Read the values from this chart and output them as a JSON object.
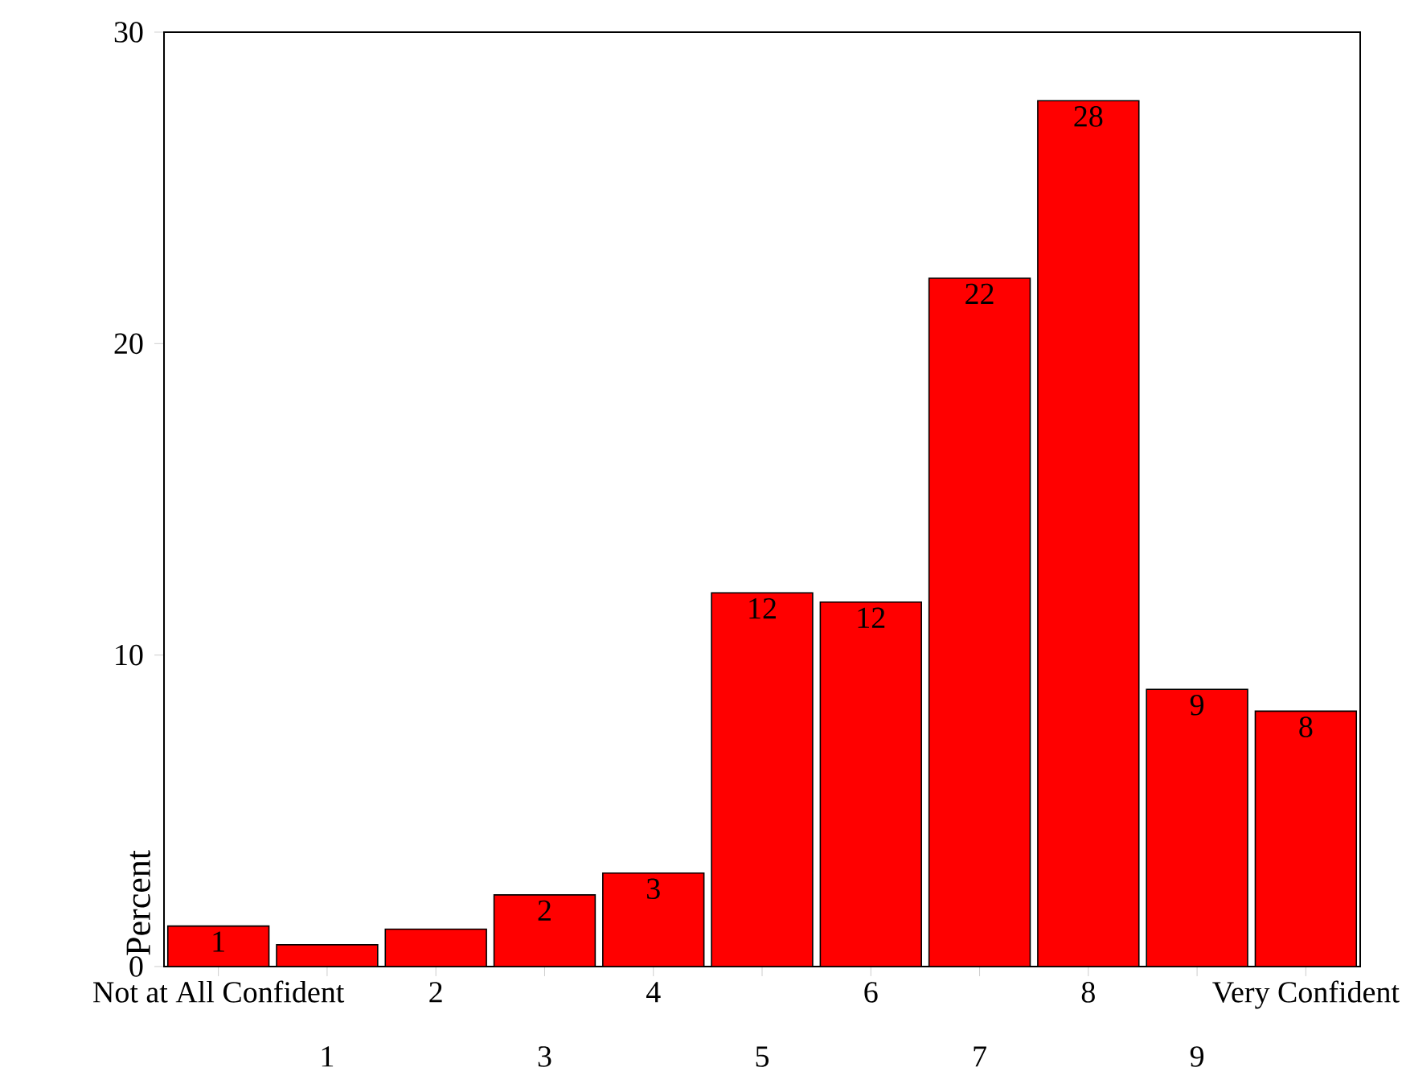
{
  "chart_data": {
    "type": "bar",
    "ylabel": "Percent",
    "categories": [
      "Not at All Confident",
      "1",
      "2",
      "3",
      "4",
      "5",
      "6",
      "7",
      "8",
      "9",
      "Very Confident"
    ],
    "values": [
      1.3,
      0.7,
      1.2,
      2.3,
      3.0,
      12.0,
      11.7,
      22.1,
      27.8,
      8.9,
      8.2
    ],
    "value_labels": [
      "1",
      null,
      null,
      "2",
      "3",
      "12",
      "12",
      "22",
      "28",
      "9",
      "8"
    ],
    "color": "#ff0000",
    "ylim": [
      0,
      30
    ],
    "yticks": [
      0,
      10,
      20,
      30
    ]
  }
}
